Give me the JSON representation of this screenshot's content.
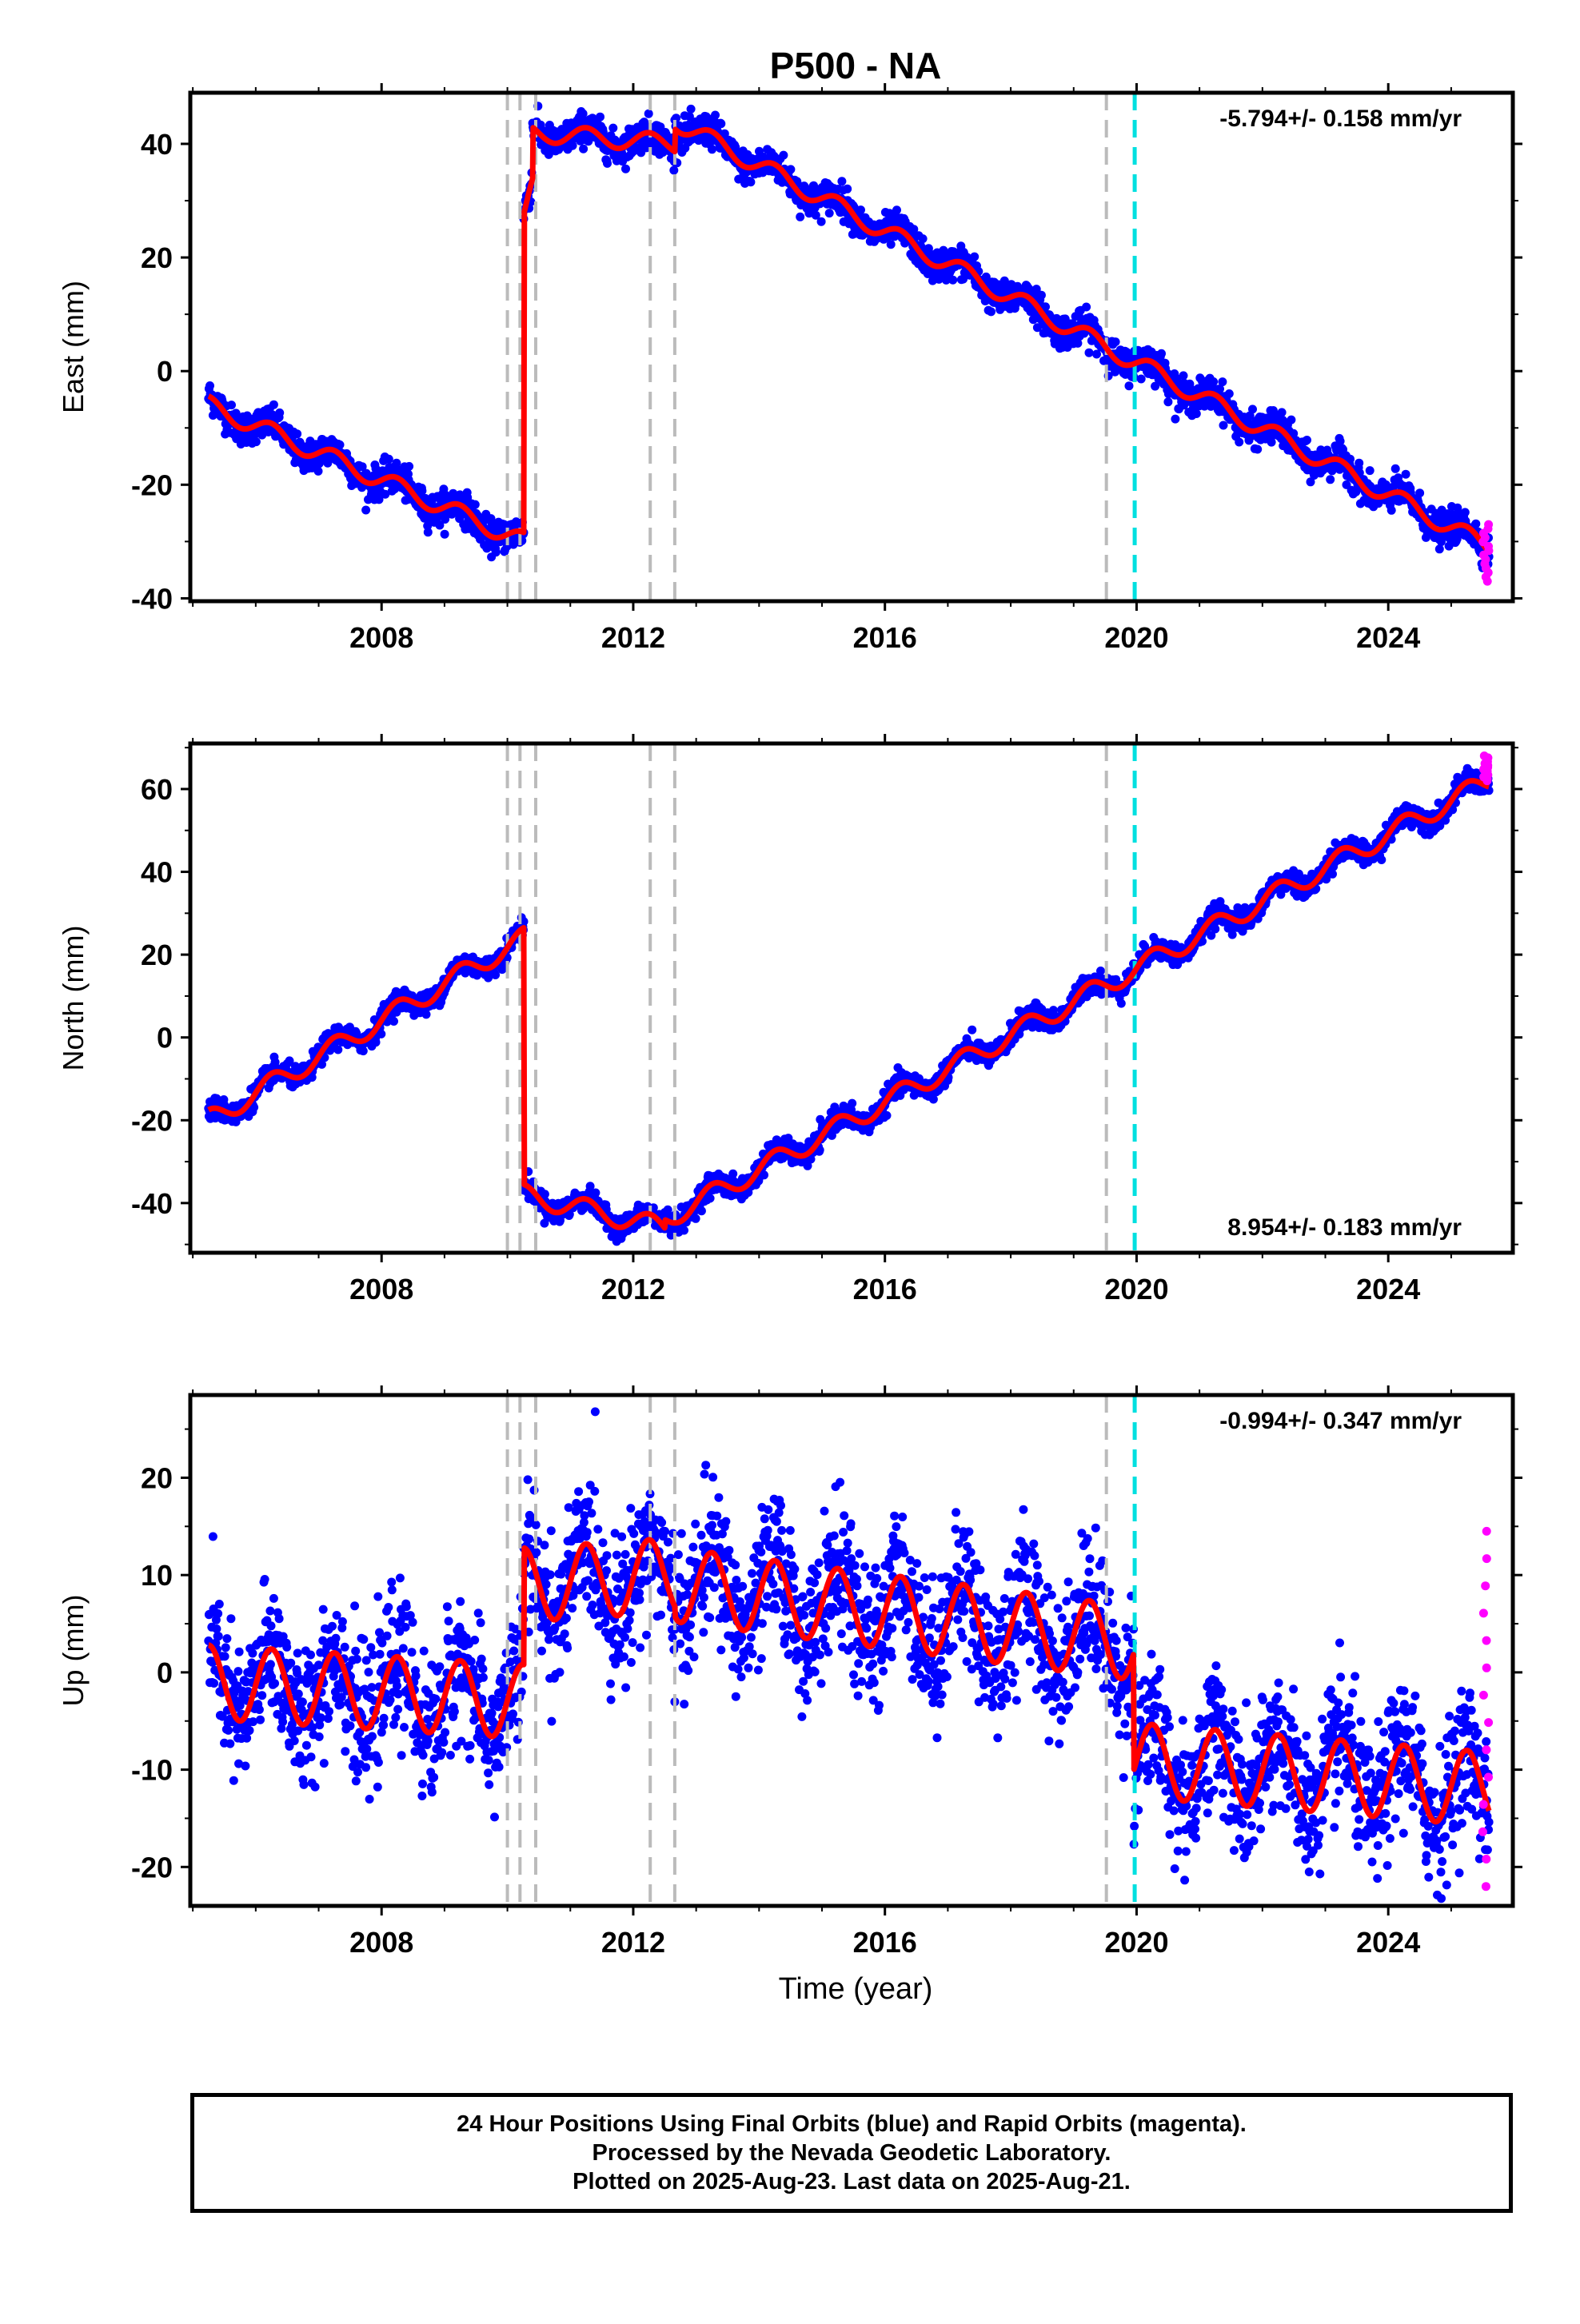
{
  "chart_data": {
    "title": "P500 - NA",
    "type": "scatter",
    "xlabel": "Time (year)",
    "x_ticks": [
      2008,
      2012,
      2016,
      2020,
      2024
    ],
    "xlim": [
      2004.96,
      2025.98
    ],
    "colors": {
      "final": "#0000ff",
      "rapid": "#ff00ff",
      "model": "#ff0000",
      "steps": "#bbbbbb",
      "rapid_start": "#00e0e0"
    },
    "step_lines": [
      2010.0,
      2010.2,
      2010.45,
      2012.27,
      2012.66,
      2019.52
    ],
    "rapid_start_line": 2019.97,
    "panels": [
      {
        "name": "east",
        "ylabel": "East (mm)",
        "ylim": [
          -40.5,
          49
        ],
        "y_ticks": [
          -40,
          -20,
          0,
          20,
          40
        ],
        "rate": "-5.794+/- 0.158 mm/yr",
        "rate_position": "top-right",
        "trend_segments": [
          {
            "x": [
              2005.25,
              2010.26
            ],
            "y": [
              -6,
              -30
            ]
          },
          {
            "x": [
              2010.26,
              2010.4
            ],
            "y": [
              26,
              33
            ]
          },
          {
            "x": [
              2010.4,
              2012.66
            ],
            "y": [
              42,
              40
            ]
          },
          {
            "x": [
              2012.66,
              2025.6
            ],
            "y": [
              44,
              -31
            ]
          }
        ],
        "seasonal_amplitude": 1.6,
        "noise": 1.4,
        "rapid": {
          "x": [
            2025.5,
            2025.6
          ],
          "y": [
            -37,
            -27
          ]
        }
      },
      {
        "name": "north",
        "ylabel": "North (mm)",
        "ylim": [
          -52,
          71
        ],
        "y_ticks": [
          -40,
          -20,
          0,
          20,
          40,
          60
        ],
        "rate": "8.954+/- 0.183 mm/yr",
        "rate_position": "bottom-right",
        "trend_segments": [
          {
            "x": [
              2005.25,
              2010.26
            ],
            "y": [
              -20,
              24
            ]
          },
          {
            "x": [
              2010.26,
              2012.5
            ],
            "y": [
              -38,
              -46
            ]
          },
          {
            "x": [
              2012.5,
              2025.6
            ],
            "y": [
              -44,
              62
            ]
          }
        ],
        "seasonal_amplitude": 2.5,
        "noise": 1.3,
        "rapid": {
          "x": [
            2025.5,
            2025.6
          ],
          "y": [
            62,
            68
          ]
        }
      },
      {
        "name": "up",
        "ylabel": "Up (mm)",
        "ylim": [
          -24,
          28.5
        ],
        "y_ticks": [
          -20,
          -10,
          0,
          10,
          20
        ],
        "rate": "-0.994+/- 0.347 mm/yr",
        "rate_position": "top-right",
        "trend_segments": [
          {
            "x": [
              2005.25,
              2010.26
            ],
            "y": [
              -1,
              -3
            ]
          },
          {
            "x": [
              2010.26,
              2012.66
            ],
            "y": [
              9,
              10
            ]
          },
          {
            "x": [
              2012.66,
              2019.95
            ],
            "y": [
              9,
              3
            ]
          },
          {
            "x": [
              2019.95,
              2025.6
            ],
            "y": [
              -9,
              -12
            ]
          }
        ],
        "seasonal_amplitude": 3.8,
        "noise": 3.5,
        "rapid": {
          "x": [
            2025.5,
            2025.6
          ],
          "y": [
            -22,
            14.5
          ]
        }
      }
    ]
  },
  "footer": {
    "line1": "24 Hour Positions Using Final Orbits (blue) and Rapid Orbits (magenta).",
    "line2": "Processed by the Nevada Geodetic Laboratory.",
    "line3": "Plotted on 2025-Aug-23. Last data on 2025-Aug-21."
  }
}
